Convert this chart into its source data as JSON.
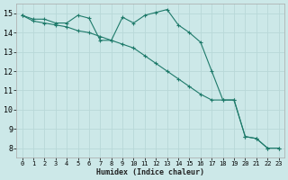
{
  "title": "",
  "xlabel": "Humidex (Indice chaleur)",
  "bg_color": "#cce8e8",
  "grid_color": "#b8d8d8",
  "line_color": "#1e7a6a",
  "xlim": [
    -0.5,
    23.5
  ],
  "ylim": [
    7.5,
    15.5
  ],
  "xticks": [
    0,
    1,
    2,
    3,
    4,
    5,
    6,
    7,
    8,
    9,
    10,
    11,
    12,
    13,
    14,
    15,
    16,
    17,
    18,
    19,
    20,
    21,
    22,
    23
  ],
  "yticks": [
    8,
    9,
    10,
    11,
    12,
    13,
    14,
    15
  ],
  "line1_x": [
    0,
    1,
    2,
    3,
    4,
    5,
    6,
    7,
    8,
    9,
    10,
    11,
    12,
    13,
    14,
    15,
    16,
    17,
    18,
    19,
    20,
    21,
    22,
    23
  ],
  "line1_y": [
    14.9,
    14.7,
    14.7,
    14.5,
    14.5,
    14.9,
    14.75,
    13.6,
    13.6,
    14.8,
    14.5,
    14.9,
    15.05,
    15.2,
    14.4,
    14.0,
    13.5,
    12.0,
    10.5,
    10.5,
    8.6,
    8.5,
    8.0,
    8.0
  ],
  "line2_x": [
    0,
    1,
    2,
    3,
    4,
    5,
    6,
    7,
    8,
    9,
    10,
    11,
    12,
    13,
    14,
    15,
    16,
    17,
    18,
    19,
    20,
    21,
    22,
    23
  ],
  "line2_y": [
    14.9,
    14.6,
    14.5,
    14.4,
    14.3,
    14.1,
    14.0,
    13.8,
    13.6,
    13.4,
    13.2,
    12.8,
    12.4,
    12.0,
    11.6,
    11.2,
    10.8,
    10.5,
    10.5,
    10.5,
    8.6,
    8.5,
    8.0,
    8.0
  ]
}
